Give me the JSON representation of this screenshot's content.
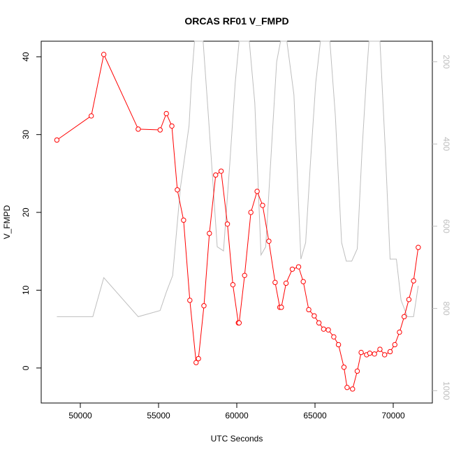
{
  "chart_data": {
    "type": "line",
    "title": "ORCAS RF01 V_FMPD",
    "xlabel": "UTC Seconds",
    "ylabel": "V_FMPD",
    "xlim": [
      47500,
      72500
    ],
    "ylim": [
      -4.5,
      42
    ],
    "x_ticks": [
      50000,
      55000,
      60000,
      65000,
      70000
    ],
    "y_ticks": [
      0,
      10,
      20,
      30,
      40
    ],
    "y2_ticks": [
      200,
      400,
      600,
      800,
      1000
    ],
    "y2lim": [
      1030,
      150
    ],
    "y2_reversed": true,
    "grid": false,
    "legend": "none",
    "colors": {
      "primary": "#ff0000",
      "secondary": "#bebebe"
    },
    "series": [
      {
        "axis": "left",
        "color": "#ff0000",
        "marker": "open-circle",
        "x": [
          48500,
          50700,
          51500,
          53700,
          55100,
          55500,
          55850,
          56200,
          56600,
          57000,
          57400,
          57550,
          57900,
          58250,
          58650,
          59000,
          59400,
          59750,
          60100,
          60150,
          60500,
          60900,
          61300,
          61650,
          62050,
          62450,
          62750,
          62850,
          63150,
          63550,
          63950,
          64250,
          64600,
          64950,
          65250,
          65550,
          65850,
          66200,
          66500,
          66850,
          67050,
          67400,
          67700,
          67950,
          68300,
          68500,
          68800,
          69150,
          69450,
          69800,
          70100,
          70400,
          70700,
          71000,
          71300,
          71600
        ],
        "y": [
          29.3,
          32.4,
          40.3,
          30.7,
          30.6,
          32.7,
          31.1,
          22.9,
          19,
          8.7,
          0.7,
          1.2,
          8,
          17.3,
          24.8,
          25.3,
          18.5,
          10.7,
          5.8,
          5.8,
          11.9,
          20,
          22.7,
          20.9,
          16.3,
          11,
          7.8,
          7.8,
          10.9,
          12.7,
          13,
          11.1,
          7.5,
          6.7,
          5.8,
          5,
          4.9,
          4,
          3,
          0.1,
          -2.5,
          -2.7,
          -0.4,
          2,
          1.7,
          1.9,
          1.8,
          2.4,
          1.7,
          2.1,
          3,
          4.6,
          6.6,
          8.8,
          11.2,
          15.5
        ]
      },
      {
        "axis": "right",
        "color": "#bebebe",
        "marker": "none",
        "x": [
          48500,
          50800,
          51500,
          53700,
          55100,
          55500,
          55900,
          56400,
          56950,
          57100,
          57300,
          57600,
          57850,
          58200,
          58750,
          59150,
          59550,
          59900,
          60150,
          60450,
          60800,
          61150,
          61550,
          61850,
          62250,
          62550,
          62800,
          63200,
          63650,
          64100,
          64400,
          64700,
          65050,
          65350,
          65650,
          65950,
          66300,
          66700,
          67000,
          67350,
          67700,
          68000,
          68300,
          68450,
          68800,
          69150,
          69500,
          69800,
          70200,
          70500,
          70900,
          71300,
          71600
        ],
        "y": [
          820,
          820,
          725,
          820,
          805,
          760,
          720,
          505,
          355,
          250,
          150,
          150,
          150,
          340,
          650,
          660,
          450,
          250,
          150,
          150,
          150,
          300,
          670,
          650,
          390,
          200,
          150,
          150,
          280,
          680,
          640,
          450,
          250,
          150,
          150,
          150,
          330,
          640,
          685,
          685,
          655,
          420,
          230,
          150,
          150,
          150,
          420,
          680,
          680,
          780,
          820,
          820,
          745
        ]
      }
    ]
  }
}
